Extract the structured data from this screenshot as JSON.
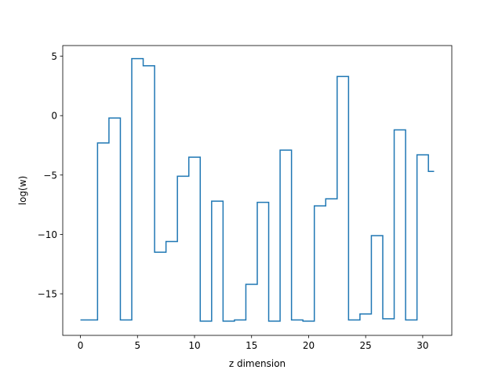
{
  "chart_data": {
    "type": "line",
    "drawstyle": "steps-mid",
    "xlabel": "z dimension",
    "ylabel": "log(w)",
    "xlim": [
      -1.55,
      32.55
    ],
    "ylim": [
      -18.5,
      5.9
    ],
    "xticks": [
      0,
      5,
      10,
      15,
      20,
      25,
      30
    ],
    "yticks": [
      5,
      0,
      -5,
      -10,
      -15
    ],
    "ytick_labels": [
      "5",
      "0",
      "−5",
      "−10",
      "−15"
    ],
    "grid": false,
    "series": [
      {
        "color": "#1f77b4",
        "x": [
          0,
          1,
          2,
          3,
          4,
          5,
          6,
          7,
          8,
          9,
          10,
          11,
          12,
          13,
          14,
          15,
          16,
          17,
          18,
          19,
          20,
          21,
          22,
          23,
          24,
          25,
          26,
          27,
          28,
          29,
          30,
          31
        ],
        "y": [
          -17.2,
          -17.2,
          -2.3,
          -0.2,
          -17.2,
          4.8,
          4.2,
          -11.5,
          -10.6,
          -5.1,
          -3.5,
          -17.3,
          -7.2,
          -17.3,
          -17.2,
          -14.2,
          -7.3,
          -17.3,
          -2.9,
          -17.2,
          -17.3,
          -7.6,
          -7.0,
          3.3,
          -17.2,
          -16.7,
          -10.1,
          -17.1,
          -1.2,
          -17.2,
          -3.3,
          -4.7
        ]
      }
    ]
  }
}
